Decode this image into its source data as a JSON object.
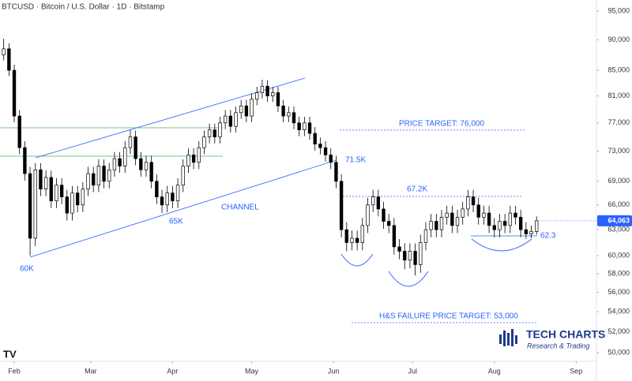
{
  "chart_data": {
    "type": "candlestick",
    "title": "BTCUSD · Bitcoin / U.S. Dollar · 1D · Bitstamp",
    "log_scale": true,
    "up_color": "#ffffff",
    "down_color": "#000000",
    "wick_color": "#000000",
    "xlim": [
      -5.4,
      220.7
    ],
    "xticks": [
      {
        "value": 0,
        "label": "Feb"
      },
      {
        "value": 29,
        "label": "Mar"
      },
      {
        "value": 60,
        "label": "Apr"
      },
      {
        "value": 90,
        "label": "May"
      },
      {
        "value": 121,
        "label": "Jun"
      },
      {
        "value": 151,
        "label": "Jul"
      },
      {
        "value": 182,
        "label": "Aug"
      },
      {
        "value": 213,
        "label": "Sep"
      }
    ],
    "ylim": [
      49200,
      97000
    ],
    "yticks": [
      {
        "value": 50000,
        "label": "50,000"
      },
      {
        "value": 52000,
        "label": "52,000"
      },
      {
        "value": 54000,
        "label": "54,000"
      },
      {
        "value": 56000,
        "label": "56,000"
      },
      {
        "value": 58000,
        "label": "58,000"
      },
      {
        "value": 60000,
        "label": "60,000"
      },
      {
        "value": 63000,
        "label": "63,000"
      },
      {
        "value": 66000,
        "label": "66,000"
      },
      {
        "value": 69000,
        "label": "69,000"
      },
      {
        "value": 73000,
        "label": "73,000"
      },
      {
        "value": 77000,
        "label": "77,000"
      },
      {
        "value": 81000,
        "label": "81,000"
      },
      {
        "value": 85000,
        "label": "85,000"
      },
      {
        "value": 90000,
        "label": "90,000"
      },
      {
        "value": 95000,
        "label": "95,000"
      }
    ],
    "last_price": 64063,
    "last_price_label": "64,063",
    "last_price_color": "#2962ff",
    "x": [
      -4,
      -2,
      0,
      2,
      4,
      6,
      8,
      10,
      12,
      14,
      16,
      18,
      20,
      22,
      24,
      26,
      28,
      30,
      32,
      34,
      36,
      38,
      40,
      42,
      44,
      46,
      48,
      50,
      52,
      54,
      56,
      58,
      60,
      62,
      64,
      66,
      68,
      70,
      72,
      74,
      76,
      78,
      80,
      82,
      84,
      86,
      88,
      90,
      92,
      94,
      96,
      98,
      100,
      102,
      104,
      106,
      108,
      110,
      112,
      114,
      116,
      118,
      120,
      122,
      124,
      126,
      128,
      130,
      132,
      134,
      136,
      138,
      140,
      142,
      144,
      146,
      148,
      150,
      152,
      154,
      156,
      158,
      160,
      162,
      164,
      166,
      168,
      170,
      172,
      174,
      176,
      178,
      180,
      182,
      184,
      186,
      188,
      190,
      192,
      194,
      196,
      198
    ],
    "open": [
      87500,
      88500,
      85000,
      78000,
      73500,
      70000,
      62000,
      70500,
      68000,
      69500,
      66500,
      68500,
      67000,
      65000,
      67500,
      66000,
      68000,
      70000,
      68500,
      71000,
      69000,
      70500,
      72000,
      71000,
      73500,
      75000,
      72000,
      70500,
      71500,
      69000,
      67000,
      66000,
      67500,
      66500,
      68500,
      71000,
      72500,
      71500,
      73500,
      75000,
      76000,
      75000,
      77000,
      78000,
      76500,
      78500,
      79500,
      78000,
      80500,
      81500,
      82500,
      81000,
      81500,
      79500,
      78000,
      78500,
      77000,
      76000,
      77000,
      75500,
      74000,
      73500,
      72500,
      71500,
      69000,
      63000,
      61500,
      62000,
      61500,
      63500,
      66000,
      67000,
      65500,
      64000,
      63500,
      61000,
      60500,
      59500,
      60500,
      59000,
      61500,
      63000,
      64000,
      63000,
      64500,
      65000,
      63500,
      64500,
      65500,
      67000,
      66000,
      64500,
      65000,
      63500,
      63000,
      64000,
      63500,
      65000,
      64500,
      63000,
      62500,
      62800
    ],
    "high": [
      90200,
      89400,
      85900,
      78900,
      74400,
      70900,
      71400,
      71400,
      70400,
      70400,
      69400,
      69400,
      67900,
      68400,
      68400,
      68900,
      70900,
      70900,
      71900,
      71900,
      71400,
      72900,
      72900,
      74400,
      76000,
      75900,
      72900,
      72400,
      72400,
      69900,
      67900,
      68400,
      68400,
      69400,
      71900,
      73400,
      73400,
      74400,
      75900,
      76900,
      76900,
      77900,
      78900,
      78900,
      79400,
      80400,
      80400,
      81400,
      82400,
      83500,
      83400,
      82400,
      82400,
      80400,
      79400,
      79400,
      77900,
      77900,
      77900,
      76400,
      74900,
      74400,
      73400,
      72400,
      69900,
      63900,
      62900,
      62900,
      64400,
      66900,
      67900,
      67900,
      66400,
      64900,
      64400,
      61900,
      61400,
      61400,
      61400,
      62400,
      63900,
      64900,
      64900,
      65400,
      65900,
      65900,
      65400,
      66400,
      67900,
      67900,
      66900,
      65900,
      65900,
      64400,
      64900,
      64900,
      65900,
      65900,
      65400,
      63900,
      63500,
      64600
    ],
    "low": [
      86600,
      84100,
      77100,
      72600,
      69100,
      60000,
      61100,
      67100,
      67100,
      65600,
      65600,
      66100,
      64100,
      64100,
      65100,
      65100,
      67100,
      67600,
      67600,
      68100,
      68100,
      69600,
      70100,
      70100,
      72600,
      71100,
      69600,
      69600,
      68100,
      66100,
      65000,
      65100,
      65600,
      65600,
      67600,
      70100,
      70600,
      70600,
      72600,
      74100,
      74100,
      74100,
      76100,
      75600,
      75600,
      77600,
      77100,
      77100,
      79600,
      80600,
      80100,
      80100,
      78600,
      77100,
      77100,
      76100,
      75100,
      75100,
      74600,
      73100,
      72600,
      71600,
      70600,
      68100,
      62100,
      60500,
      60600,
      60600,
      60600,
      62600,
      65100,
      64600,
      63100,
      62600,
      60100,
      59600,
      58500,
      58600,
      57800,
      58100,
      60600,
      62100,
      62100,
      62100,
      63600,
      62600,
      62600,
      63600,
      64600,
      65100,
      63600,
      63600,
      62600,
      62100,
      62100,
      62600,
      62600,
      63600,
      62100,
      61900,
      62000,
      62400
    ],
    "close": [
      88500,
      85000,
      78000,
      73500,
      70000,
      62000,
      70500,
      68000,
      69500,
      66500,
      68500,
      67000,
      65000,
      67500,
      66000,
      68000,
      70000,
      68500,
      71000,
      69000,
      70500,
      72000,
      71000,
      73500,
      75000,
      72000,
      70500,
      71500,
      69000,
      67000,
      66000,
      67500,
      66500,
      68500,
      71000,
      72500,
      71500,
      73500,
      75000,
      76000,
      75000,
      77000,
      78000,
      76500,
      78500,
      79500,
      78000,
      80500,
      81500,
      82500,
      81000,
      81500,
      79500,
      78000,
      78500,
      77000,
      76000,
      77000,
      75500,
      74000,
      73500,
      72500,
      71500,
      69000,
      63000,
      61500,
      62000,
      61500,
      63500,
      66000,
      67000,
      65500,
      64000,
      63500,
      61000,
      60500,
      59500,
      60500,
      59000,
      61500,
      63000,
      64000,
      63000,
      64500,
      65000,
      63500,
      64500,
      65500,
      67000,
      66000,
      64500,
      65000,
      63500,
      63000,
      64000,
      63500,
      65000,
      64500,
      63000,
      62500,
      62800,
      64063
    ],
    "annotations": [
      "60K",
      "65K",
      "CHANNEL",
      "71.5K",
      "PRICE TARGET: 76,000",
      "67.2K",
      "62.3",
      "H&S FAILURE PRICE TARGET: 53,000"
    ],
    "logo": {
      "title": "TECH CHARTS",
      "subtitle": "Research & Trading"
    }
  }
}
